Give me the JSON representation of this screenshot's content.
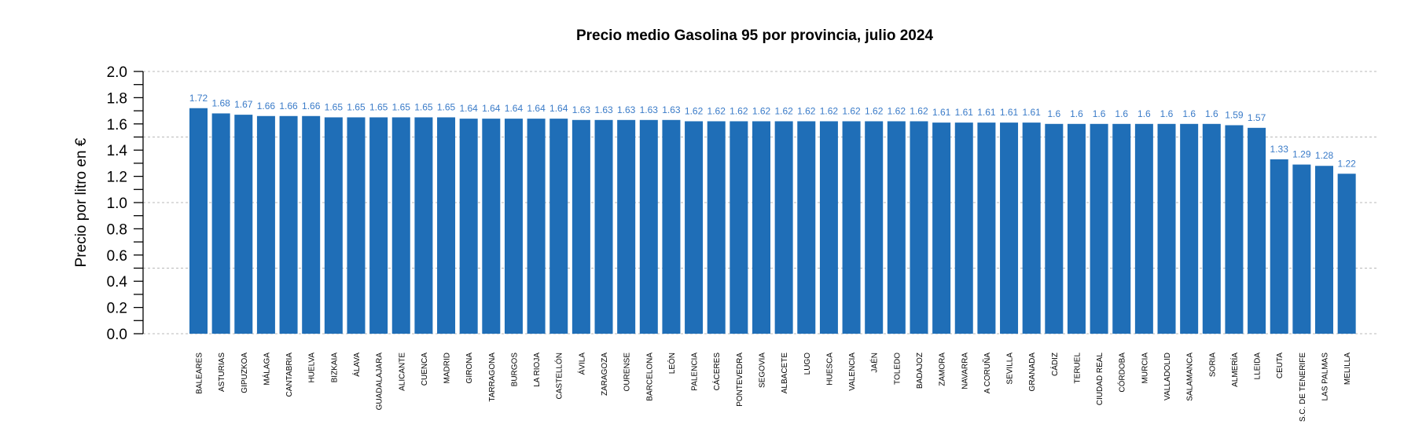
{
  "chart_data": {
    "type": "bar",
    "title": "Precio medio Gasolina 95 por provincia, julio 2024",
    "xlabel": "",
    "ylabel": "Precio por litro en €",
    "ylim": [
      0,
      2.0
    ],
    "yticks": [
      "0.0",
      "0.2",
      "0.4",
      "0.6",
      "0.8",
      "1.0",
      "1.2",
      "1.4",
      "1.6",
      "1.8",
      "2.0"
    ],
    "gridlines": [
      0.0,
      0.5,
      1.0,
      1.5,
      2.0
    ],
    "grid": true,
    "legend": null,
    "bar_color": "#1f6eb7",
    "label_color": "#3a7bc8",
    "categories": [
      "BALEARES",
      "ASTURIAS",
      "GIPUZKOA",
      "MÁLAGA",
      "CANTABRIA",
      "HUELVA",
      "BIZKAIA",
      "ÁLAVA",
      "GUADALAJARA",
      "ALICANTE",
      "CUENCA",
      "MADRID",
      "GIRONA",
      "TARRAGONA",
      "BURGOS",
      "LA RIOJA",
      "CASTELLÓN",
      "ÁVILA",
      "ZARAGOZA",
      "OURENSE",
      "BARCELONA",
      "LEÓN",
      "PALENCIA",
      "CÁCERES",
      "PONTEVEDRA",
      "SEGOVIA",
      "ALBACETE",
      "LUGO",
      "HUESCA",
      "VALENCIA",
      "JAÉN",
      "TOLEDO",
      "BADAJOZ",
      "ZAMORA",
      "NAVARRA",
      "A CORUÑA",
      "SEVILLA",
      "GRANADA",
      "CÁDIZ",
      "TERUEL",
      "CIUDAD REAL",
      "CÓRDOBA",
      "MURCIA",
      "VALLADOLID",
      "SALAMANCA",
      "SORIA",
      "ALMERÍA",
      "LLEIDA",
      "CEUTA",
      "S.C. DE TENERIFE",
      "LAS PALMAS",
      "MELILLA"
    ],
    "values": [
      1.72,
      1.68,
      1.67,
      1.66,
      1.66,
      1.66,
      1.65,
      1.65,
      1.65,
      1.65,
      1.65,
      1.65,
      1.64,
      1.64,
      1.64,
      1.64,
      1.64,
      1.63,
      1.63,
      1.63,
      1.63,
      1.63,
      1.62,
      1.62,
      1.62,
      1.62,
      1.62,
      1.62,
      1.62,
      1.62,
      1.62,
      1.62,
      1.62,
      1.61,
      1.61,
      1.61,
      1.61,
      1.61,
      1.6,
      1.6,
      1.6,
      1.6,
      1.6,
      1.6,
      1.6,
      1.6,
      1.59,
      1.57,
      1.33,
      1.29,
      1.28,
      1.22
    ],
    "value_labels": [
      "1.72",
      "1.68",
      "1.67",
      "1.66",
      "1.66",
      "1.66",
      "1.65",
      "1.65",
      "1.65",
      "1.65",
      "1.65",
      "1.65",
      "1.64",
      "1.64",
      "1.64",
      "1.64",
      "1.64",
      "1.63",
      "1.63",
      "1.63",
      "1.63",
      "1.63",
      "1.62",
      "1.62",
      "1.62",
      "1.62",
      "1.62",
      "1.62",
      "1.62",
      "1.62",
      "1.62",
      "1.62",
      "1.62",
      "1.61",
      "1.61",
      "1.61",
      "1.61",
      "1.61",
      "1.6",
      "1.6",
      "1.6",
      "1.6",
      "1.6",
      "1.6",
      "1.6",
      "1.6",
      "1.59",
      "1.57",
      "1.33",
      "1.29",
      "1.28",
      "1.22"
    ]
  }
}
